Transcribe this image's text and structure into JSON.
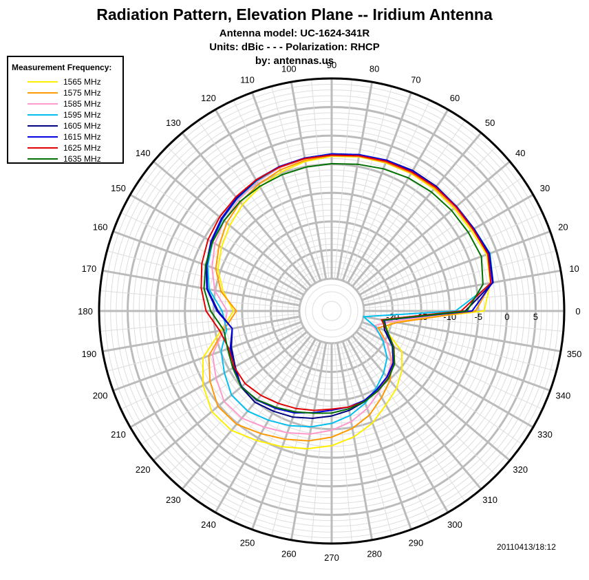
{
  "chart_data": {
    "type": "polar-line",
    "title": "Radiation Pattern, Elevation Plane -- Iridium Antenna",
    "subtitles": [
      "Antenna model: UC-1624-341R",
      "Units: dBic - - - Polarization: RHCP",
      "by: antennas.us"
    ],
    "radial_range": [
      -25,
      10
    ],
    "radial_ticks": [
      -20,
      -15,
      -10,
      -5,
      0,
      5
    ],
    "angle_ticks": [
      0,
      10,
      20,
      30,
      40,
      50,
      60,
      70,
      80,
      90,
      100,
      110,
      120,
      130,
      140,
      150,
      160,
      170,
      180,
      190,
      200,
      210,
      220,
      230,
      240,
      250,
      260,
      270,
      280,
      290,
      300,
      310,
      320,
      330,
      340,
      350
    ],
    "legend": {
      "title": "Measurement Frequency:",
      "placement": "top-left"
    },
    "grid": true,
    "angles": [
      0,
      10,
      20,
      30,
      40,
      50,
      60,
      70,
      80,
      90,
      100,
      110,
      120,
      130,
      140,
      150,
      160,
      170,
      180,
      190,
      200,
      210,
      220,
      230,
      240,
      250,
      260,
      270,
      280,
      290,
      300,
      310,
      320,
      330,
      340,
      350
    ],
    "series": [
      {
        "name": "1565 MHz",
        "color": "#ffee00",
        "values": [
          -4,
          -2.5,
          -1.8,
          -2.5,
          -2.7,
          -2.8,
          -2.9,
          -3.1,
          -3.3,
          -3.6,
          -4.1,
          -4.8,
          -5.6,
          -6.4,
          -7.4,
          -8.4,
          -9.5,
          -11.4,
          -13.5,
          -11,
          -6.7,
          -4.7,
          -3.3,
          -3.4,
          -4.5,
          -5.4,
          -6.2,
          -7.1,
          -8.3,
          -9.8,
          -11.7,
          -13,
          -14.6,
          -16.5,
          -20.5,
          -20
        ]
      },
      {
        "name": "1575 MHz",
        "color": "#ff9900",
        "values": [
          -5.5,
          -2.3,
          -1.5,
          -2.2,
          -2.5,
          -2.6,
          -2.8,
          -3,
          -3.2,
          -3.5,
          -3.9,
          -4.4,
          -5.1,
          -5.8,
          -6.7,
          -7.9,
          -9.1,
          -11,
          -14,
          -11.5,
          -7.8,
          -6.1,
          -4.7,
          -4.8,
          -5.9,
          -6.8,
          -7.6,
          -8.6,
          -9.8,
          -11.3,
          -13.2,
          -14.8,
          -16.8,
          -19.5,
          -22,
          -19
        ]
      },
      {
        "name": "1585 MHz",
        "color": "#ff99cc",
        "values": [
          -7.3,
          -2.2,
          -1.4,
          -2.1,
          -2.4,
          -2.4,
          -2.6,
          -2.8,
          -3.1,
          -3.3,
          -3.6,
          -4,
          -4.6,
          -5.3,
          -6.1,
          -7.1,
          -8.4,
          -9.9,
          -12.4,
          -11.5,
          -8.5,
          -7.3,
          -6.1,
          -6.2,
          -7.2,
          -8,
          -8.8,
          -9.8,
          -11,
          -12.5,
          -14.2,
          -15.6,
          -17,
          -19.5,
          -23,
          -20
        ]
      },
      {
        "name": "1595 MHz",
        "color": "#00bfef",
        "values": [
          -9,
          -2,
          -1.2,
          -1.9,
          -2.2,
          -2.3,
          -2.4,
          -2.6,
          -2.9,
          -3.2,
          -3.5,
          -3.9,
          -4.4,
          -5,
          -5.7,
          -6.6,
          -7.6,
          -8.9,
          -11.5,
          -12,
          -10.1,
          -9,
          -7.8,
          -7.8,
          -8.6,
          -9.3,
          -10.1,
          -11,
          -12.1,
          -13.5,
          -15.1,
          -16.5,
          -18,
          -20.3,
          -22.5,
          -25
        ]
      },
      {
        "name": "1605 MHz",
        "color": "#000080",
        "values": [
          -7.3,
          -2,
          -1.3,
          -1.9,
          -2.2,
          -2.2,
          -2.3,
          -2.6,
          -2.9,
          -3.2,
          -3.5,
          -3.8,
          -4.3,
          -4.9,
          -5.6,
          -6.4,
          -7.4,
          -8.6,
          -10.8,
          -13,
          -12,
          -11.2,
          -10,
          -9.8,
          -10.4,
          -10.9,
          -11.6,
          -12.3,
          -13,
          -13.8,
          -14.8,
          -15.6,
          -16.6,
          -18.4,
          -20.8,
          -21.5
        ]
      },
      {
        "name": "1615 MHz",
        "color": "#0000e0",
        "values": [
          -6.1,
          -2.1,
          -1.4,
          -1.9,
          -2.2,
          -2.3,
          -2.4,
          -2.6,
          -2.9,
          -3.2,
          -3.5,
          -3.8,
          -4.2,
          -4.8,
          -5.5,
          -6.3,
          -7.3,
          -8.5,
          -10.6,
          -13,
          -11.8,
          -10.9,
          -10.1,
          -10.3,
          -11,
          -11.7,
          -12.6,
          -13.3,
          -13.6,
          -14,
          -14.8,
          -15.6,
          -16.5,
          -18.3,
          -20.4,
          -21.3
        ]
      },
      {
        "name": "1625 MHz",
        "color": "#e00000",
        "values": [
          -8,
          -2.4,
          -1.6,
          -2.1,
          -2.3,
          -2.4,
          -2.6,
          -2.8,
          -3.1,
          -3.4,
          -3.6,
          -3.9,
          -4.2,
          -4.6,
          -5.1,
          -5.7,
          -6.5,
          -7.5,
          -8.7,
          -10.8,
          -11.5,
          -11,
          -10.9,
          -11.4,
          -12,
          -12.5,
          -13,
          -13.5,
          -13.6,
          -13.8,
          -14.5,
          -15.3,
          -16.3,
          -18.1,
          -20.3,
          -21.8
        ]
      },
      {
        "name": "1635 MHz",
        "color": "#007000",
        "values": [
          -7,
          -3.8,
          -2.8,
          -3.1,
          -3.3,
          -3.5,
          -3.8,
          -4.2,
          -4.6,
          -4.9,
          -5.1,
          -5.3,
          -5.5,
          -5.7,
          -6.1,
          -6.6,
          -7.2,
          -8,
          -9.5,
          -11.5,
          -11.3,
          -10.7,
          -10,
          -10.4,
          -11.2,
          -11.9,
          -12.5,
          -12.8,
          -13.3,
          -13.8,
          -14.5,
          -15.2,
          -16.3,
          -18.2,
          -20.3,
          -21.5
        ]
      }
    ],
    "timestamp": "20110413/18:12"
  }
}
